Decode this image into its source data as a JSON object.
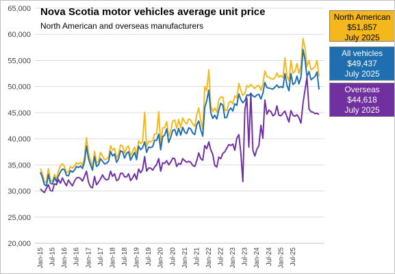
{
  "title": "Nova Scotia motor vehicles average unit price",
  "subtitle": "North American and overseas manufacturers",
  "chart_data": {
    "type": "line",
    "ylim": [
      20000,
      65000
    ],
    "yticks": [
      "20,000",
      "25,000",
      "30,000",
      "35,000",
      "40,000",
      "45,000",
      "50,000",
      "55,000",
      "60,000",
      "65,000"
    ],
    "ytick_values": [
      20000,
      25000,
      30000,
      35000,
      40000,
      45000,
      50000,
      55000,
      60000,
      65000
    ],
    "xticks": [
      "Jan-15",
      "Jul-15",
      "Jan-16",
      "Jul-16",
      "Jan-17",
      "Jul-17",
      "Jan-18",
      "Jul-18",
      "Jan-19",
      "Jul-19",
      "Jan-20",
      "Jul-20",
      "Jan-21",
      "Jul-21",
      "Jan-22",
      "Jul-22",
      "Jan-23",
      "Jul-23",
      "Jan-24",
      "Jul-24",
      "Jan-25",
      "Jul-25"
    ],
    "grid": "horizontal",
    "series": [
      {
        "name": "North American",
        "color": "#f4b81d",
        "values": [
          34300,
          33300,
          31700,
          31800,
          34300,
          32100,
          31800,
          33200,
          32300,
          33900,
          34800,
          35200,
          34700,
          33500,
          33700,
          34700,
          34400,
          34800,
          35400,
          35200,
          35500,
          34900,
          36400,
          40200,
          37200,
          35800,
          34600,
          37600,
          35400,
          35700,
          37400,
          36700,
          36000,
          36100,
          36500,
          38700,
          37800,
          38200,
          36300,
          37100,
          38800,
          38600,
          37200,
          38300,
          38600,
          36700,
          37600,
          38400,
          36900,
          39600,
          39100,
          39400,
          45100,
          38500,
          39500,
          39400,
          39700,
          40900,
          41000,
          45200,
          39100,
          42100,
          42100,
          43300,
          40500,
          41500,
          43400,
          43600,
          42000,
          43700,
          42100,
          44000,
          43200,
          42800,
          43800,
          43600,
          42800,
          42400,
          44600,
          45900,
          43500,
          41800,
          50000,
          49200,
          53200,
          46300,
          45200,
          45900,
          45100,
          47400,
          48000,
          48000,
          45500,
          45400,
          46900,
          47200,
          46700,
          48200,
          47800,
          50600,
          49300,
          48300,
          48700,
          50200,
          49900,
          50400,
          50000,
          49600,
          50100,
          50200,
          49300,
          50400,
          53000,
          51900,
          51800,
          51500,
          51400,
          51700,
          52600,
          51800,
          52100,
          51700,
          55500,
          52000,
          51100,
          55000,
          52600,
          52900,
          54400,
          52500,
          54000,
          59200,
          57400,
          53800,
          55000,
          53200,
          53400,
          53800,
          55000,
          51900
        ]
      },
      {
        "name": "All vehicles",
        "color": "#1f6fb0",
        "values": [
          33600,
          32600,
          31200,
          31000,
          33200,
          31500,
          31300,
          32600,
          31800,
          32900,
          33700,
          34200,
          34100,
          33000,
          32900,
          33900,
          33600,
          34000,
          34700,
          34500,
          34800,
          34300,
          35600,
          38600,
          36200,
          35000,
          34000,
          36600,
          34700,
          35000,
          36200,
          35700,
          35200,
          35300,
          35700,
          37600,
          36700,
          37100,
          35500,
          36200,
          37700,
          37500,
          36300,
          37200,
          37500,
          35900,
          36700,
          37400,
          36000,
          38600,
          37900,
          38300,
          39400,
          37400,
          38400,
          38300,
          38500,
          39700,
          39700,
          40900,
          37900,
          40400,
          40700,
          41900,
          39300,
          40300,
          41600,
          41800,
          40600,
          42000,
          40700,
          42200,
          41300,
          41000,
          42100,
          41900,
          41100,
          40800,
          42700,
          43400,
          41700,
          40500,
          46000,
          47300,
          49300,
          45000,
          43900,
          44500,
          43800,
          45500,
          46800,
          46400,
          44000,
          44100,
          45400,
          45900,
          45300,
          46700,
          46400,
          48600,
          47500,
          46900,
          47300,
          48400,
          48300,
          48700,
          48200,
          48000,
          48400,
          48500,
          47600,
          48700,
          50800,
          49800,
          49700,
          49600,
          49500,
          49900,
          50300,
          49800,
          50000,
          49800,
          52500,
          50200,
          49200,
          52500,
          50400,
          50700,
          52000,
          50500,
          51800,
          57100,
          55200,
          51900,
          52900,
          51300,
          51600,
          51900,
          52800,
          49437
        ]
      },
      {
        "name": "Overseas",
        "color": "#7030a0",
        "values": [
          30400,
          30000,
          29700,
          30500,
          31200,
          30100,
          30000,
          31400,
          31200,
          32200,
          31500,
          32500,
          31700,
          31000,
          32100,
          31500,
          31000,
          31900,
          32500,
          32600,
          32400,
          31900,
          32800,
          33800,
          31700,
          30800,
          30600,
          32800,
          31200,
          31700,
          32300,
          33100,
          32400,
          32100,
          32300,
          33800,
          32800,
          33300,
          32000,
          32200,
          33400,
          33400,
          32700,
          32700,
          33300,
          32000,
          32500,
          33300,
          32200,
          34200,
          33500,
          34100,
          36600,
          33800,
          34400,
          34400,
          34000,
          34600,
          35100,
          36200,
          33800,
          35400,
          35300,
          35800,
          35000,
          35500,
          36300,
          36200,
          34700,
          35300,
          35100,
          36200,
          35800,
          35500,
          35700,
          35500,
          34900,
          34700,
          35800,
          37300,
          36200,
          35900,
          38700,
          38100,
          39400,
          37900,
          37000,
          34900,
          34600,
          36500,
          36200,
          37200,
          37500,
          38200,
          38900,
          38700,
          39000,
          37800,
          40100,
          40800,
          37300,
          31800,
          45600,
          47800,
          38400,
          48700,
          37800,
          36700,
          38000,
          38700,
          42600,
          40100,
          47400,
          44700,
          45500,
          45200,
          44400,
          44700,
          46300,
          44500,
          44400,
          44900,
          45300,
          44200,
          43200,
          45400,
          44500,
          44300,
          44600,
          44000,
          43000,
          46800,
          49300,
          51800,
          45700,
          45200,
          45100,
          44800,
          44900,
          44618
        ]
      }
    ]
  },
  "legend": {
    "north_american": {
      "label": "North American",
      "value": "$51,857",
      "date": "July 2025",
      "bg": "#f4b81d",
      "fg": "#000000"
    },
    "all_vehicles": {
      "label": "All vehicles",
      "value": "$49,437",
      "date": "July 2025",
      "bg": "#1f6fb0",
      "fg": "#ffffff"
    },
    "overseas": {
      "label": "Overseas",
      "value": "$44,618",
      "date": "July 2025",
      "bg": "#7030a0",
      "fg": "#ffffff"
    }
  }
}
